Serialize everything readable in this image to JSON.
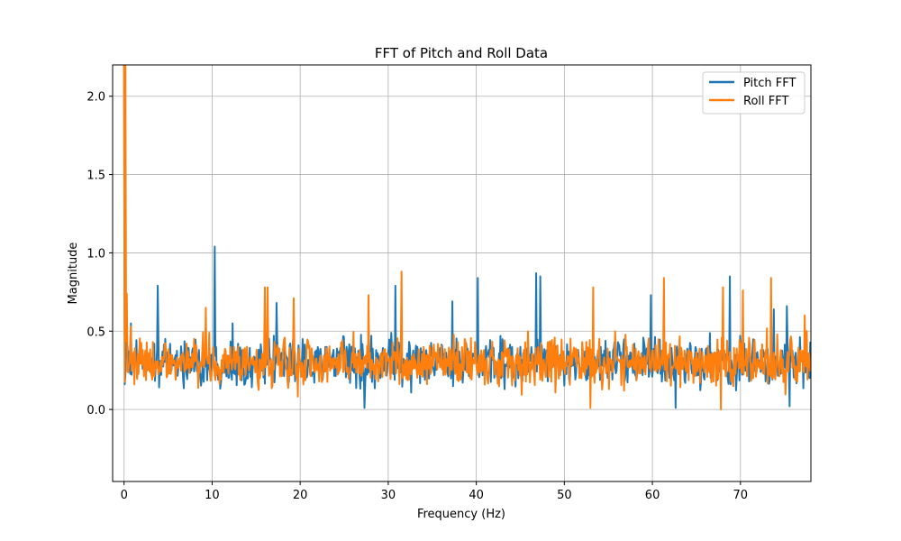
{
  "chart_data": {
    "type": "line",
    "title": "FFT of Pitch and Roll Data",
    "xlabel": "Frequency (Hz)",
    "ylabel": "Magnitude",
    "xlim": [
      -1.3,
      78
    ],
    "ylim": [
      -0.46,
      2.2
    ],
    "xticks": [
      0,
      10,
      20,
      30,
      40,
      50,
      60,
      70
    ],
    "yticks": [
      0.0,
      0.5,
      1.0,
      1.5,
      2.0
    ],
    "xtick_labels": [
      "0",
      "10",
      "20",
      "30",
      "40",
      "50",
      "60",
      "70"
    ],
    "ytick_labels": [
      "0.0",
      "0.5",
      "1.0",
      "1.5",
      "2.0"
    ],
    "grid": true,
    "legend_position": "top-right",
    "x_range_hz": [
      0,
      78
    ],
    "series": [
      {
        "name": "Pitch FFT",
        "color": "#1f77b4",
        "baseline": 0.3,
        "noise": 0.13,
        "peaks": [
          [
            0.0,
            2.2
          ],
          [
            0.25,
            0.72
          ],
          [
            0.8,
            0.55
          ],
          [
            3.8,
            0.79
          ],
          [
            10.3,
            1.04
          ],
          [
            12.3,
            0.55
          ],
          [
            17.3,
            0.68
          ],
          [
            30.8,
            0.79
          ],
          [
            37.3,
            0.69
          ],
          [
            40.2,
            0.84
          ],
          [
            46.8,
            0.87
          ],
          [
            47.3,
            0.85
          ],
          [
            59.8,
            0.73
          ],
          [
            68.8,
            0.85
          ],
          [
            73.8,
            0.64
          ],
          [
            75.3,
            0.66
          ]
        ],
        "dips": [
          [
            27.3,
            0.01
          ],
          [
            62.6,
            0.01
          ],
          [
            75.6,
            0.02
          ]
        ]
      },
      {
        "name": "Roll FFT",
        "color": "#ff7f0e",
        "baseline": 0.3,
        "noise": 0.13,
        "peaks": [
          [
            0.0,
            2.2
          ],
          [
            0.15,
            2.2
          ],
          [
            0.3,
            0.74
          ],
          [
            9.3,
            0.65
          ],
          [
            16.0,
            0.78
          ],
          [
            16.3,
            0.78
          ],
          [
            19.3,
            0.71
          ],
          [
            27.8,
            0.73
          ],
          [
            31.5,
            0.88
          ],
          [
            53.3,
            0.78
          ],
          [
            61.3,
            0.84
          ],
          [
            68.0,
            0.78
          ],
          [
            70.3,
            0.76
          ],
          [
            73.5,
            0.84
          ],
          [
            77.3,
            0.6
          ]
        ],
        "dips": [
          [
            53.0,
            0.01
          ],
          [
            67.8,
            0.0
          ]
        ]
      }
    ]
  }
}
